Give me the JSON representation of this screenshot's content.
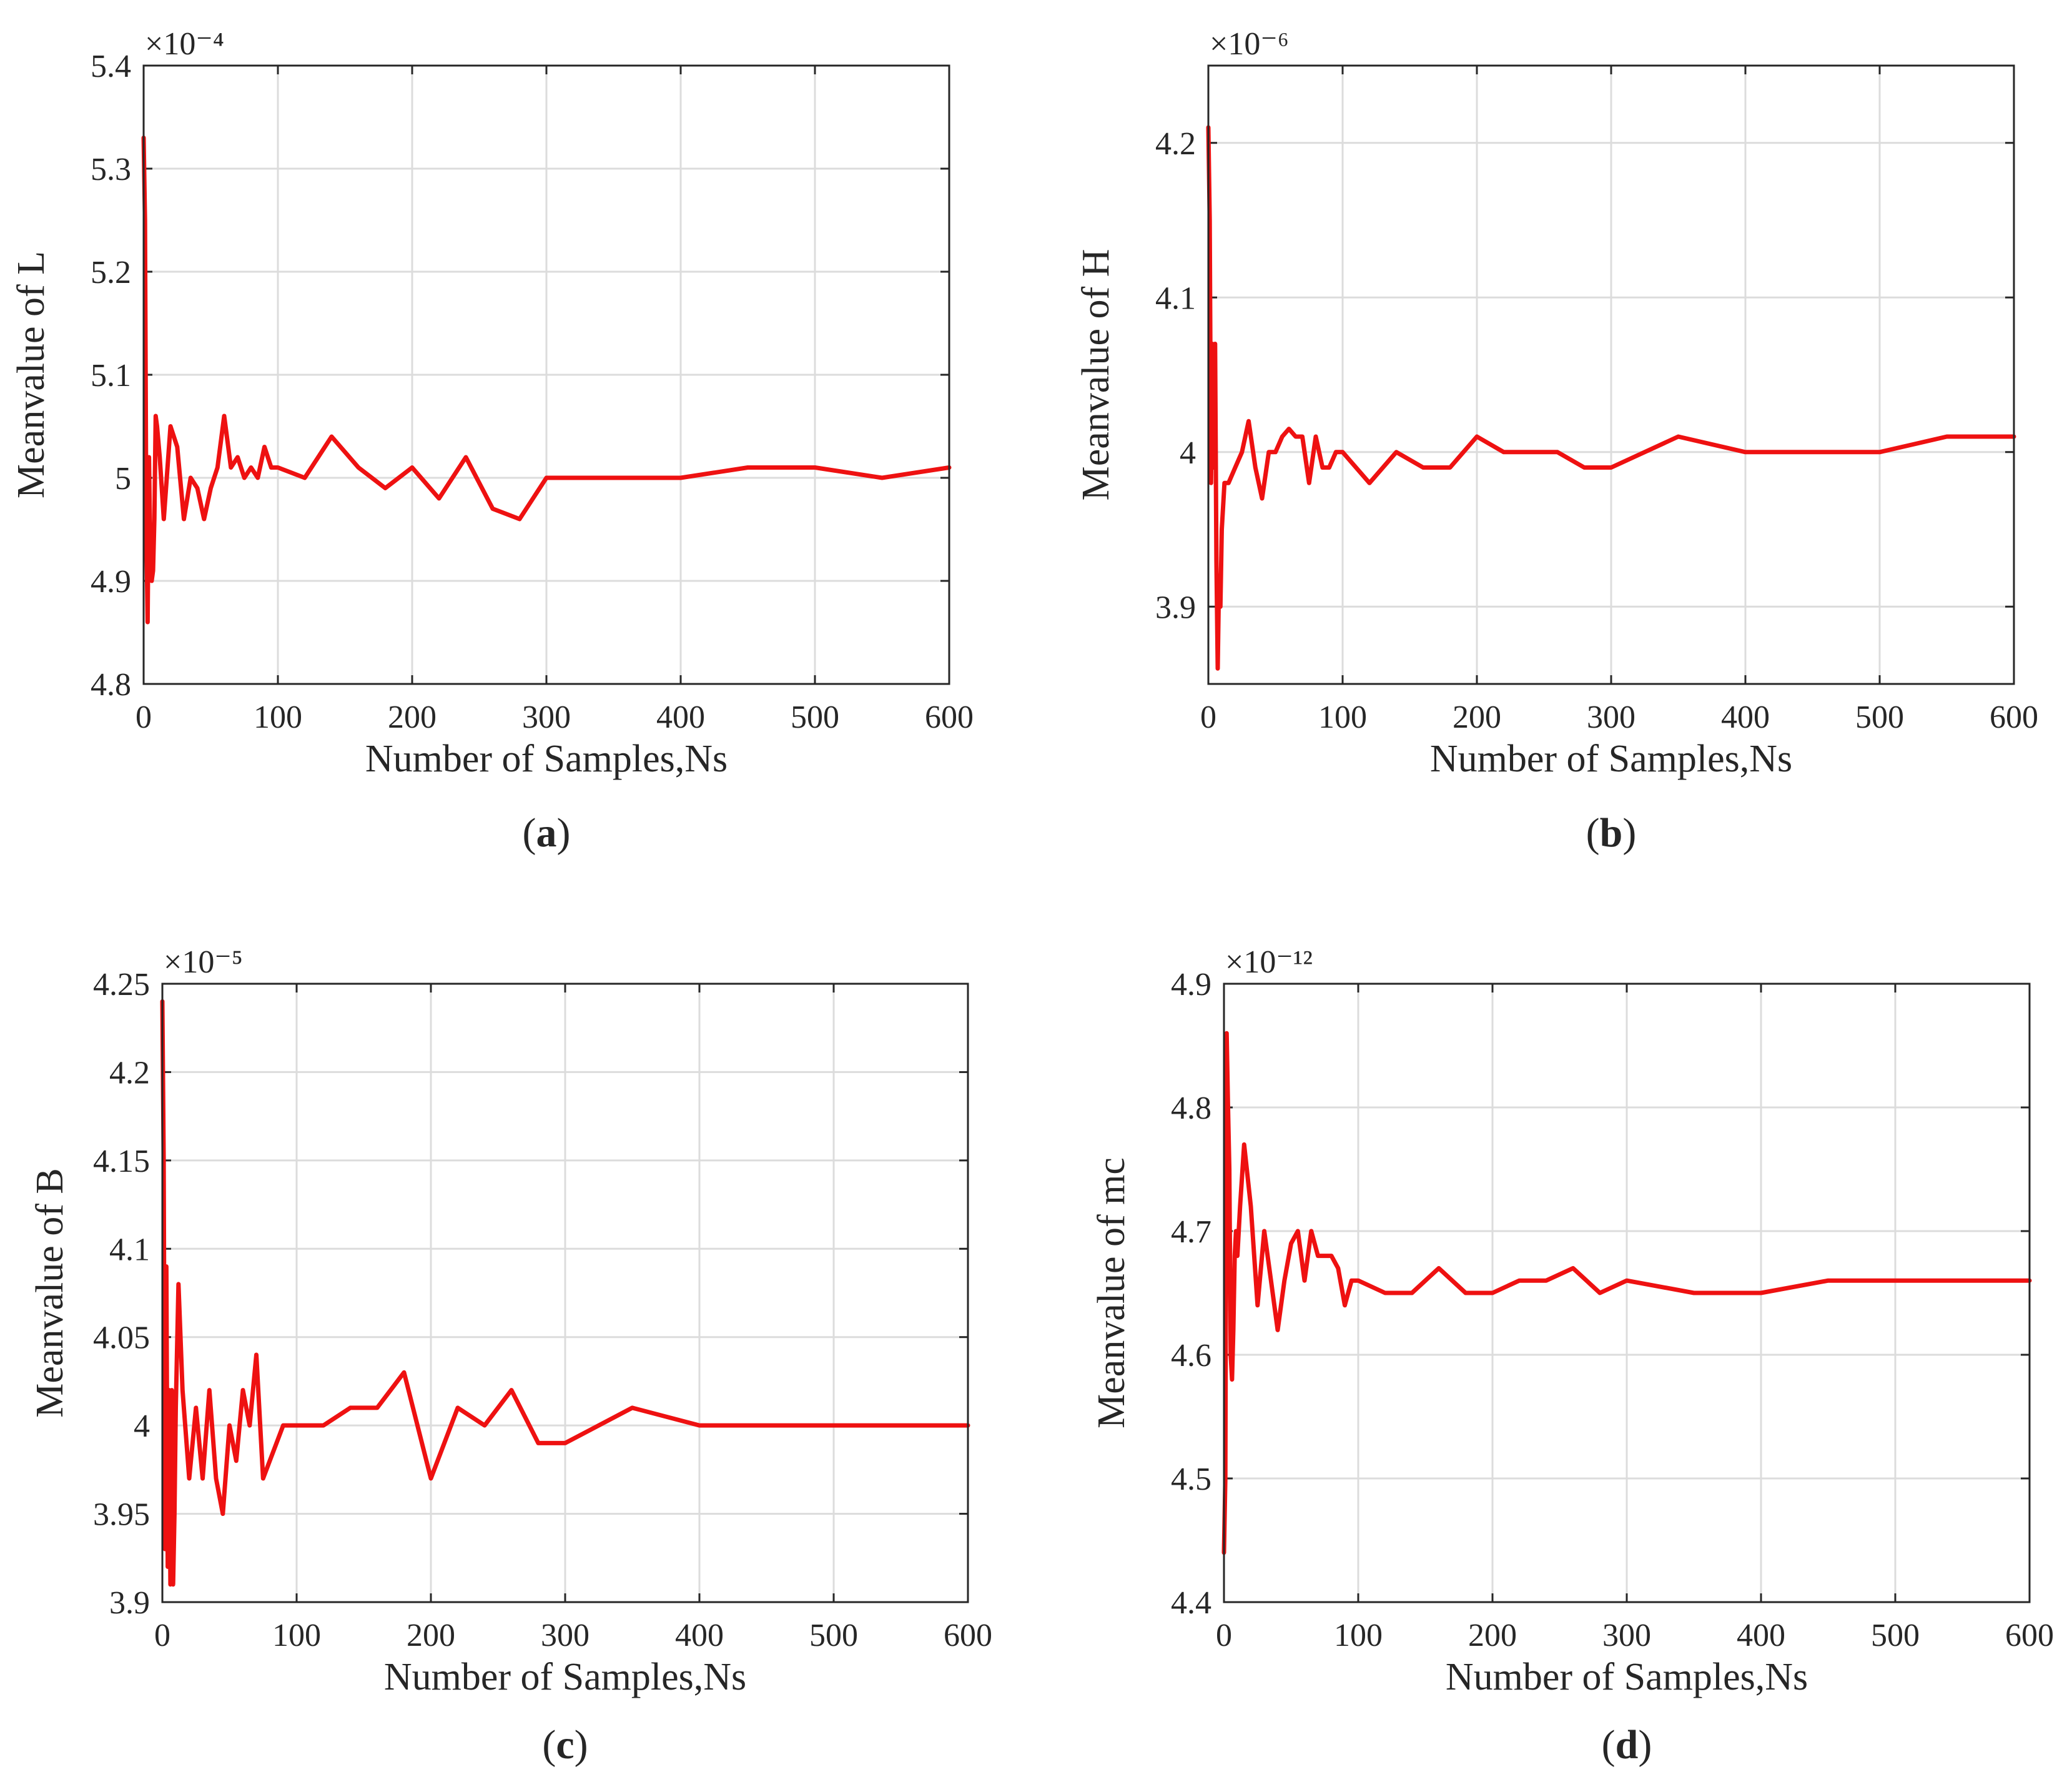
{
  "chart_data": [
    {
      "type": "line",
      "panel_label": "(a)",
      "xlabel": "Number of Samples,Ns",
      "ylabel": "Meanvalue of L",
      "exponent": "×10⁻⁴",
      "xlim": [
        0,
        600
      ],
      "ylim": [
        4.8,
        5.4
      ],
      "xticks": [
        0,
        100,
        200,
        300,
        400,
        500,
        600
      ],
      "yticks": [
        4.8,
        4.9,
        5.0,
        5.1,
        5.2,
        5.3,
        5.4
      ],
      "ytick_labels": [
        "4.8",
        "4.9",
        "5",
        "5.1",
        "5.2",
        "5.3",
        "5.4"
      ],
      "grid": true,
      "series": [
        {
          "name": "L",
          "color": "#ee1111",
          "x": [
            0,
            1,
            2,
            3,
            4,
            5,
            6,
            7,
            8,
            9,
            10,
            12,
            15,
            20,
            25,
            30,
            35,
            40,
            45,
            50,
            55,
            60,
            65,
            70,
            75,
            80,
            85,
            90,
            95,
            100,
            120,
            140,
            160,
            180,
            200,
            220,
            240,
            260,
            280,
            300,
            350,
            400,
            450,
            500,
            550,
            600
          ],
          "y": [
            5.33,
            5.25,
            4.95,
            4.86,
            5.02,
            4.92,
            4.9,
            4.91,
            4.96,
            5.06,
            5.05,
            5.02,
            4.96,
            5.05,
            5.03,
            4.96,
            5.0,
            4.99,
            4.96,
            4.99,
            5.01,
            5.06,
            5.01,
            5.02,
            5.0,
            5.01,
            5.0,
            5.03,
            5.01,
            5.01,
            5.0,
            5.04,
            5.01,
            4.99,
            5.01,
            4.98,
            5.02,
            4.97,
            4.96,
            5.0,
            5.0,
            5.0,
            5.01,
            5.01,
            5.0,
            5.01
          ]
        }
      ]
    },
    {
      "type": "line",
      "panel_label": "(b)",
      "xlabel": "Number of Samples,Ns",
      "ylabel": "Meanvalue of H",
      "exponent": "×10⁻⁶",
      "xlim": [
        0,
        600
      ],
      "ylim": [
        3.85,
        4.25
      ],
      "xticks": [
        0,
        100,
        200,
        300,
        400,
        500,
        600
      ],
      "yticks": [
        3.9,
        4.0,
        4.1,
        4.2
      ],
      "ytick_labels": [
        "3.9",
        "4",
        "4.1",
        "4.2"
      ],
      "grid": true,
      "series": [
        {
          "name": "H",
          "color": "#ee1111",
          "x": [
            0,
            1,
            2,
            3,
            4,
            5,
            6,
            7,
            8,
            9,
            10,
            12,
            15,
            20,
            25,
            30,
            35,
            40,
            45,
            50,
            55,
            60,
            65,
            70,
            75,
            80,
            85,
            90,
            95,
            100,
            120,
            140,
            160,
            180,
            200,
            220,
            240,
            260,
            280,
            300,
            350,
            400,
            450,
            500,
            550,
            600
          ],
          "y": [
            4.21,
            4.15,
            3.98,
            4.07,
            3.99,
            4.07,
            3.93,
            3.86,
            3.92,
            3.9,
            3.95,
            3.98,
            3.98,
            3.99,
            4.0,
            4.02,
            3.99,
            3.97,
            4.0,
            4.0,
            4.01,
            4.015,
            4.01,
            4.01,
            3.98,
            4.01,
            3.99,
            3.99,
            4.0,
            4.0,
            3.98,
            4.0,
            3.99,
            3.99,
            4.01,
            4.0,
            4.0,
            4.0,
            3.99,
            3.99,
            4.01,
            4.0,
            4.0,
            4.0,
            4.01,
            4.01
          ]
        }
      ]
    },
    {
      "type": "line",
      "panel_label": "(c)",
      "xlabel": "Number of Samples,Ns",
      "ylabel": "Meanvalue of B",
      "exponent": "×10⁻⁵",
      "xlim": [
        0,
        600
      ],
      "ylim": [
        3.9,
        4.25
      ],
      "xticks": [
        0,
        100,
        200,
        300,
        400,
        500,
        600
      ],
      "yticks": [
        3.9,
        3.95,
        4.0,
        4.05,
        4.1,
        4.15,
        4.2,
        4.25
      ],
      "ytick_labels": [
        "3.9",
        "3.95",
        "4",
        "4.05",
        "4.1",
        "4.15",
        "4.2",
        "4.25"
      ],
      "grid": true,
      "series": [
        {
          "name": "B",
          "color": "#ee1111",
          "x": [
            0,
            1,
            2,
            3,
            4,
            5,
            6,
            7,
            8,
            9,
            10,
            12,
            15,
            20,
            25,
            30,
            35,
            40,
            45,
            50,
            55,
            60,
            65,
            70,
            75,
            80,
            85,
            90,
            95,
            100,
            120,
            140,
            160,
            180,
            200,
            220,
            240,
            260,
            280,
            300,
            350,
            400,
            450,
            500,
            550,
            600
          ],
          "y": [
            4.24,
            4.15,
            3.93,
            4.09,
            3.92,
            4.02,
            3.91,
            4.02,
            3.91,
            3.95,
            4.01,
            4.08,
            4.02,
            3.97,
            4.01,
            3.97,
            4.02,
            3.97,
            3.95,
            4.0,
            3.98,
            4.02,
            4.0,
            4.04,
            3.97,
            3.98,
            3.99,
            4.0,
            4.0,
            4.0,
            4.0,
            4.01,
            4.01,
            4.03,
            3.97,
            4.01,
            4.0,
            4.02,
            3.99,
            3.99,
            4.01,
            4.0,
            4.0,
            4.0,
            4.0,
            4.0
          ]
        }
      ]
    },
    {
      "type": "line",
      "panel_label": "(d)",
      "xlabel": "Number of Samples,Ns",
      "ylabel": "Meanvalue of mc",
      "exponent": "×10⁻¹²",
      "xlim": [
        0,
        600
      ],
      "ylim": [
        4.4,
        4.9
      ],
      "xticks": [
        0,
        100,
        200,
        300,
        400,
        500,
        600
      ],
      "yticks": [
        4.4,
        4.5,
        4.6,
        4.7,
        4.8,
        4.9
      ],
      "ytick_labels": [
        "4.4",
        "4.5",
        "4.6",
        "4.7",
        "4.8",
        "4.9"
      ],
      "grid": true,
      "series": [
        {
          "name": "mc",
          "color": "#ee1111",
          "x": [
            0,
            1,
            2,
            3,
            4,
            5,
            6,
            7,
            8,
            9,
            10,
            12,
            15,
            20,
            25,
            30,
            35,
            40,
            45,
            50,
            55,
            60,
            65,
            70,
            75,
            80,
            85,
            90,
            95,
            100,
            120,
            140,
            160,
            180,
            200,
            220,
            240,
            260,
            280,
            300,
            350,
            400,
            450,
            500,
            550,
            600
          ],
          "y": [
            4.44,
            4.5,
            4.86,
            4.8,
            4.75,
            4.6,
            4.58,
            4.62,
            4.68,
            4.7,
            4.68,
            4.72,
            4.77,
            4.72,
            4.64,
            4.7,
            4.66,
            4.62,
            4.66,
            4.69,
            4.7,
            4.66,
            4.7,
            4.68,
            4.68,
            4.68,
            4.67,
            4.64,
            4.66,
            4.66,
            4.65,
            4.65,
            4.67,
            4.65,
            4.65,
            4.66,
            4.66,
            4.67,
            4.65,
            4.66,
            4.65,
            4.65,
            4.66,
            4.66,
            4.66,
            4.66
          ]
        }
      ]
    }
  ]
}
